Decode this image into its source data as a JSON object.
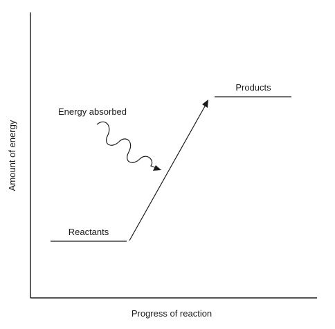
{
  "axes": {
    "y_label": "Amount of energy",
    "x_label": "Progress of reaction"
  },
  "levels": {
    "reactants": "Reactants",
    "products": "Products"
  },
  "energy": {
    "label": "Energy absorbed",
    "icon": "wavy-arrow-icon"
  },
  "colors": {
    "ink": "#1a1a1a",
    "background": "#ffffff"
  }
}
